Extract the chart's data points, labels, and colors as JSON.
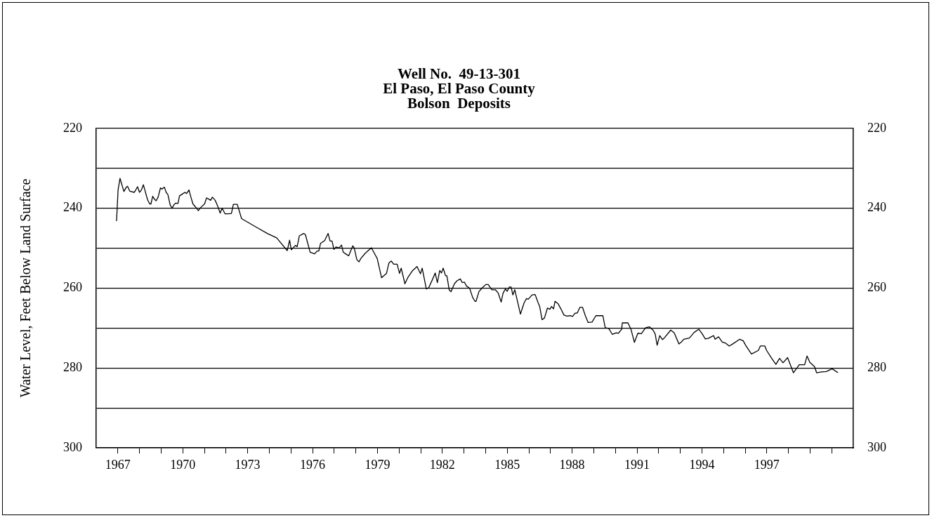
{
  "chart_data": {
    "type": "line",
    "title": "Well No.  49-13-301\nEl Paso, El Paso County\nBolson  Deposits",
    "ylabel": "Water Level, Feet Below Land Surface",
    "color": "#000000",
    "x": [
      1966.94,
      1967.01,
      1967.1,
      1967.28,
      1967.39,
      1967.45,
      1967.55,
      1967.75,
      1967.8,
      1967.91,
      1968.0,
      1968.09,
      1968.18,
      1968.37,
      1968.47,
      1968.53,
      1968.61,
      1968.69,
      1968.77,
      1968.86,
      1968.97,
      1969.04,
      1969.15,
      1969.24,
      1969.31,
      1969.42,
      1969.51,
      1969.58,
      1969.67,
      1969.78,
      1969.85,
      1969.96,
      1970.1,
      1970.18,
      1970.29,
      1970.36,
      1970.47,
      1970.58,
      1970.72,
      1970.83,
      1971.01,
      1971.1,
      1971.2,
      1971.29,
      1971.37,
      1971.5,
      1971.61,
      1971.73,
      1971.82,
      1971.96,
      1972.09,
      1972.25,
      1972.34,
      1972.52,
      1972.72,
      1973.42,
      1973.91,
      1974.34,
      1974.83,
      1974.94,
      1975.02,
      1975.21,
      1975.29,
      1975.39,
      1975.59,
      1975.67,
      1975.89,
      1976.1,
      1976.21,
      1976.29,
      1976.37,
      1976.56,
      1976.72,
      1976.81,
      1976.9,
      1976.99,
      1977.08,
      1977.23,
      1977.34,
      1977.42,
      1977.53,
      1977.67,
      1977.86,
      1977.93,
      1978.05,
      1978.15,
      1978.23,
      1978.43,
      1978.72,
      1978.9,
      1978.99,
      1979.19,
      1979.42,
      1979.53,
      1979.64,
      1979.75,
      1979.91,
      1980.02,
      1980.1,
      1980.27,
      1980.4,
      1980.61,
      1980.83,
      1980.99,
      1981.07,
      1981.26,
      1981.37,
      1981.53,
      1981.67,
      1981.77,
      1981.88,
      1981.96,
      1982.04,
      1982.15,
      1982.21,
      1982.32,
      1982.4,
      1982.56,
      1982.67,
      1982.83,
      1982.92,
      1983.02,
      1983.12,
      1983.26,
      1983.4,
      1983.51,
      1983.56,
      1983.69,
      1983.83,
      1984.01,
      1984.12,
      1984.29,
      1984.45,
      1984.58,
      1984.72,
      1984.81,
      1984.92,
      1985.0,
      1985.1,
      1985.18,
      1985.26,
      1985.35,
      1985.61,
      1985.78,
      1985.89,
      1985.97,
      1986.15,
      1986.29,
      1986.43,
      1986.5,
      1986.61,
      1986.72,
      1986.86,
      1986.97,
      1987.05,
      1987.14,
      1987.21,
      1987.35,
      1987.48,
      1987.62,
      1987.75,
      1987.93,
      1988.02,
      1988.13,
      1988.24,
      1988.36,
      1988.48,
      1988.61,
      1988.74,
      1988.92,
      1989.1,
      1989.42,
      1989.53,
      1989.69,
      1989.86,
      1990.04,
      1990.14,
      1990.29,
      1990.32,
      1990.58,
      1990.72,
      1990.88,
      1991.04,
      1991.2,
      1991.4,
      1991.58,
      1991.75,
      1991.84,
      1991.93,
      1992.05,
      1992.18,
      1992.29,
      1992.56,
      1992.72,
      1992.94,
      1993.05,
      1993.16,
      1993.42,
      1993.64,
      1993.86,
      1994.02,
      1994.15,
      1994.29,
      1994.54,
      1994.61,
      1994.77,
      1994.94,
      1995.1,
      1995.26,
      1995.42,
      1995.75,
      1995.91,
      1996.02,
      1996.29,
      1996.61,
      1996.7,
      1996.91,
      1996.99,
      1997.2,
      1997.42,
      1997.59,
      1997.75,
      1997.96,
      1998.23,
      1998.5,
      1998.75,
      1998.86,
      1998.99,
      1999.21,
      1999.3,
      1999.53,
      1999.75,
      2000.02,
      2000.29
    ],
    "values": [
      243.2,
      235.4,
      232.5,
      235.8,
      234.7,
      234.5,
      235.7,
      236.0,
      235.7,
      234.6,
      236.0,
      235.4,
      234.1,
      237.8,
      238.9,
      238.9,
      237.0,
      237.7,
      238.1,
      237.2,
      234.9,
      235.2,
      234.7,
      236.1,
      236.5,
      239.2,
      240.0,
      239.2,
      238.7,
      238.8,
      236.9,
      236.5,
      236.0,
      236.3,
      235.4,
      236.9,
      238.9,
      239.6,
      240.6,
      239.8,
      238.9,
      237.4,
      237.7,
      238.0,
      237.2,
      238.0,
      239.4,
      241.2,
      240.0,
      241.4,
      241.4,
      241.3,
      239.0,
      239.0,
      242.6,
      244.8,
      246.3,
      247.4,
      250.6,
      248.0,
      250.4,
      249.3,
      249.6,
      246.9,
      246.3,
      246.6,
      251.0,
      251.4,
      250.7,
      250.7,
      248.8,
      248.1,
      246.3,
      248.2,
      248.2,
      250.3,
      249.7,
      249.9,
      249.2,
      251.0,
      251.4,
      251.9,
      249.4,
      250.0,
      252.9,
      253.4,
      252.6,
      251.3,
      249.9,
      251.7,
      252.6,
      257.4,
      256.3,
      253.7,
      253.2,
      254.0,
      254.0,
      256.3,
      255.0,
      258.9,
      257.4,
      255.7,
      254.6,
      256.4,
      255.0,
      260.2,
      259.9,
      258.0,
      256.2,
      258.6,
      255.6,
      256.2,
      255.0,
      256.9,
      256.9,
      260.5,
      260.9,
      258.9,
      258.2,
      257.7,
      258.6,
      258.5,
      259.5,
      260.0,
      262.3,
      263.3,
      263.3,
      260.9,
      260.0,
      259.1,
      259.1,
      260.4,
      260.4,
      261.2,
      263.5,
      261.2,
      260.2,
      260.8,
      259.7,
      259.7,
      261.7,
      260.4,
      266.5,
      263.7,
      262.6,
      262.8,
      261.7,
      261.6,
      263.7,
      264.6,
      267.9,
      267.5,
      265.0,
      265.3,
      264.6,
      265.2,
      263.3,
      263.9,
      265.2,
      266.7,
      267.0,
      266.9,
      267.1,
      266.3,
      266.2,
      264.8,
      264.8,
      266.9,
      268.6,
      268.5,
      266.9,
      266.9,
      269.9,
      270.1,
      271.6,
      271.2,
      271.3,
      270.3,
      268.7,
      268.7,
      270.3,
      273.6,
      271.3,
      271.4,
      269.9,
      269.7,
      270.6,
      271.5,
      274.3,
      271.9,
      272.9,
      272.3,
      270.5,
      271.2,
      274.0,
      273.5,
      272.8,
      272.5,
      271.1,
      270.3,
      271.5,
      272.7,
      272.6,
      271.9,
      272.8,
      272.2,
      273.5,
      273.8,
      274.5,
      274.0,
      272.8,
      273.2,
      274.3,
      276.5,
      275.6,
      274.5,
      274.5,
      275.6,
      277.4,
      279.1,
      277.6,
      278.7,
      277.4,
      281.2,
      279.2,
      279.2,
      277.0,
      278.6,
      279.7,
      281.2,
      281.0,
      280.9,
      280.2,
      281.2
    ],
    "xlim": [
      1966,
      2001
    ],
    "xticks": [
      1967,
      {
        "value": 1968,
        "label": null
      },
      {
        "value": 1969,
        "label": null
      },
      1970,
      {
        "value": 1971,
        "label": null
      },
      {
        "value": 1972,
        "label": null
      },
      1973,
      {
        "value": 1974,
        "label": null
      },
      {
        "value": 1975,
        "label": null
      },
      1976,
      {
        "value": 1977,
        "label": null
      },
      {
        "value": 1978,
        "label": null
      },
      1979,
      {
        "value": 1980,
        "label": null
      },
      {
        "value": 1981,
        "label": null
      },
      1982,
      {
        "value": 1983,
        "label": null
      },
      {
        "value": 1984,
        "label": null
      },
      1985,
      {
        "value": 1986,
        "label": null
      },
      {
        "value": 1987,
        "label": null
      },
      1988,
      {
        "value": 1989,
        "label": null
      },
      {
        "value": 1990,
        "label": null
      },
      1991,
      {
        "value": 1992,
        "label": null
      },
      {
        "value": 1993,
        "label": null
      },
      1994,
      {
        "value": 1995,
        "label": null
      },
      {
        "value": 1996,
        "label": null
      },
      1997,
      {
        "value": 1998,
        "label": null
      },
      {
        "value": 1999,
        "label": null
      },
      {
        "value": 2000,
        "label": null
      }
    ],
    "ylim": [
      300,
      220
    ],
    "yticks": [
      220,
      {
        "value": 230,
        "label": null
      },
      240,
      {
        "value": 250,
        "label": null
      },
      260,
      {
        "value": 270,
        "label": null
      },
      280,
      {
        "value": 290,
        "label": null
      },
      300
    ],
    "y2lim": [
      300,
      220
    ],
    "y2ticks": [
      220,
      240,
      260,
      280,
      300
    ],
    "grid": "y",
    "legend": false,
    "marker": "none",
    "line_style": "solid"
  }
}
